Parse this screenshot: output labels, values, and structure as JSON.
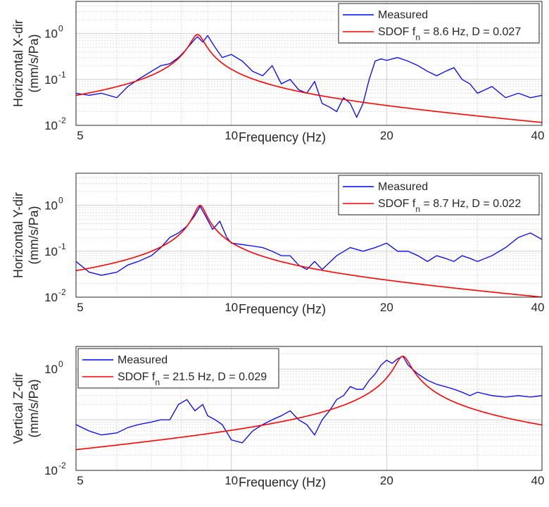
{
  "colors": {
    "measured": "#0000ff",
    "sdof": "#ff0000",
    "grid": "#dcdcdc",
    "axis": "#262626"
  },
  "chart_data": [
    {
      "type": "line",
      "xscale": "log",
      "yscale": "log",
      "xlim": [
        5,
        40
      ],
      "ylim": [
        0.01,
        5
      ],
      "xticks": [
        5,
        10,
        20,
        40
      ],
      "xtick_labels": [
        "5",
        "10",
        "20",
        "40"
      ],
      "yticks": [
        0.01,
        0.1,
        1
      ],
      "xlabel": "Frequency (Hz)",
      "ylabel": [
        "Horizontal X-dir",
        "(mm/s/Pa)"
      ],
      "grid": true,
      "legend_position": "top-right",
      "series": [
        {
          "name": "Measured",
          "x": [
            5.0,
            5.3,
            5.6,
            6.0,
            6.3,
            6.6,
            7.0,
            7.3,
            7.6,
            7.9,
            8.1,
            8.3,
            8.5,
            8.6,
            8.8,
            9.0,
            9.3,
            9.6,
            10.0,
            10.5,
            11.0,
            11.5,
            12.0,
            12.5,
            13.0,
            13.5,
            14.0,
            14.5,
            15.0,
            15.5,
            16.0,
            16.5,
            17.0,
            17.5,
            18.0,
            18.5,
            19.0,
            19.5,
            20.0,
            21.0,
            22.0,
            23.0,
            24.0,
            25.0,
            26.0,
            27.0,
            28.0,
            29.0,
            30.0,
            32.0,
            34.0,
            36.0,
            38.0,
            40.0
          ],
          "y": [
            0.05,
            0.045,
            0.05,
            0.04,
            0.07,
            0.1,
            0.15,
            0.2,
            0.22,
            0.3,
            0.4,
            0.55,
            0.75,
            0.85,
            0.65,
            0.9,
            0.5,
            0.3,
            0.35,
            0.25,
            0.15,
            0.12,
            0.2,
            0.08,
            0.1,
            0.06,
            0.05,
            0.09,
            0.03,
            0.025,
            0.02,
            0.04,
            0.03,
            0.015,
            0.03,
            0.1,
            0.25,
            0.28,
            0.26,
            0.3,
            0.25,
            0.2,
            0.15,
            0.12,
            0.15,
            0.18,
            0.1,
            0.08,
            0.05,
            0.07,
            0.04,
            0.05,
            0.04,
            0.045
          ]
        },
        {
          "name": "SDOF fn = 8.6 Hz, D = 0.027",
          "fn": 8.6,
          "D": 0.027,
          "peak": 0.95
        }
      ]
    },
    {
      "type": "line",
      "xscale": "log",
      "yscale": "log",
      "xlim": [
        5,
        40
      ],
      "ylim": [
        0.01,
        5
      ],
      "xticks": [
        5,
        10,
        20,
        40
      ],
      "xtick_labels": [
        "5",
        "10",
        "20",
        "40"
      ],
      "yticks": [
        0.01,
        0.1,
        1
      ],
      "xlabel": "Frequency (Hz)",
      "ylabel": [
        "Horizontal Y-dir",
        "(mm/s/Pa)"
      ],
      "grid": true,
      "legend_position": "top-right",
      "series": [
        {
          "name": "Measured",
          "x": [
            5.0,
            5.3,
            5.6,
            6.0,
            6.3,
            6.6,
            7.0,
            7.3,
            7.6,
            7.9,
            8.2,
            8.5,
            8.7,
            8.9,
            9.2,
            9.5,
            9.8,
            10.0,
            10.5,
            11.0,
            11.5,
            12.0,
            12.5,
            13.0,
            13.5,
            14.0,
            14.5,
            15.0,
            16.0,
            17.0,
            18.0,
            19.0,
            20.0,
            21.0,
            22.0,
            23.0,
            24.0,
            25.0,
            26.0,
            27.0,
            28.0,
            29.0,
            30.0,
            32.0,
            34.0,
            36.0,
            38.0,
            40.0
          ],
          "y": [
            0.06,
            0.035,
            0.03,
            0.035,
            0.05,
            0.06,
            0.08,
            0.12,
            0.2,
            0.25,
            0.35,
            0.6,
            0.95,
            0.6,
            0.3,
            0.45,
            0.2,
            0.15,
            0.14,
            0.13,
            0.12,
            0.1,
            0.08,
            0.08,
            0.05,
            0.04,
            0.06,
            0.04,
            0.08,
            0.12,
            0.1,
            0.12,
            0.15,
            0.1,
            0.1,
            0.08,
            0.06,
            0.08,
            0.07,
            0.06,
            0.08,
            0.07,
            0.06,
            0.08,
            0.12,
            0.2,
            0.25,
            0.18
          ]
        },
        {
          "name": "SDOF fn = 8.7 Hz, D = 0.022",
          "fn": 8.7,
          "D": 0.022,
          "peak": 1.0
        }
      ]
    },
    {
      "type": "line",
      "xscale": "log",
      "yscale": "log",
      "xlim": [
        5,
        40
      ],
      "ylim": [
        0.01,
        2.8
      ],
      "xticks": [
        5,
        10,
        20,
        40
      ],
      "xtick_labels": [
        "5",
        "10",
        "20",
        "40"
      ],
      "yticks": [
        0.01,
        1
      ],
      "xlabel": "Frequency (Hz)",
      "ylabel": [
        "Vertical Z-dir",
        "(mm/s/Pa)"
      ],
      "grid": true,
      "legend_position": "top-left",
      "series": [
        {
          "name": "Measured",
          "x": [
            5.0,
            5.3,
            5.6,
            6.0,
            6.3,
            6.6,
            7.0,
            7.3,
            7.6,
            7.9,
            8.2,
            8.5,
            8.8,
            9.0,
            9.3,
            9.6,
            10.0,
            10.5,
            11.0,
            11.5,
            12.0,
            12.5,
            13.0,
            13.5,
            14.0,
            14.5,
            15.0,
            15.5,
            16.0,
            16.5,
            17.0,
            17.5,
            18.0,
            18.5,
            19.0,
            19.5,
            20.0,
            20.5,
            21.0,
            21.5,
            22.0,
            23.0,
            24.0,
            25.0,
            26.0,
            27.0,
            28.0,
            29.0,
            30.0,
            32.0,
            34.0,
            36.0,
            38.0,
            40.0
          ],
          "y": [
            0.08,
            0.06,
            0.05,
            0.055,
            0.07,
            0.08,
            0.09,
            0.1,
            0.1,
            0.2,
            0.25,
            0.15,
            0.2,
            0.12,
            0.1,
            0.08,
            0.04,
            0.035,
            0.06,
            0.08,
            0.1,
            0.12,
            0.15,
            0.1,
            0.08,
            0.05,
            0.1,
            0.15,
            0.25,
            0.3,
            0.45,
            0.4,
            0.4,
            0.6,
            0.8,
            1.2,
            1.5,
            1.3,
            1.6,
            1.8,
            1.2,
            0.8,
            0.6,
            0.5,
            0.45,
            0.4,
            0.35,
            0.3,
            0.35,
            0.3,
            0.28,
            0.3,
            0.28,
            0.3
          ]
        },
        {
          "name": "SDOF fn = 21.5 Hz, D = 0.029",
          "fn": 21.5,
          "D": 0.029,
          "peak": 1.8
        }
      ]
    }
  ]
}
